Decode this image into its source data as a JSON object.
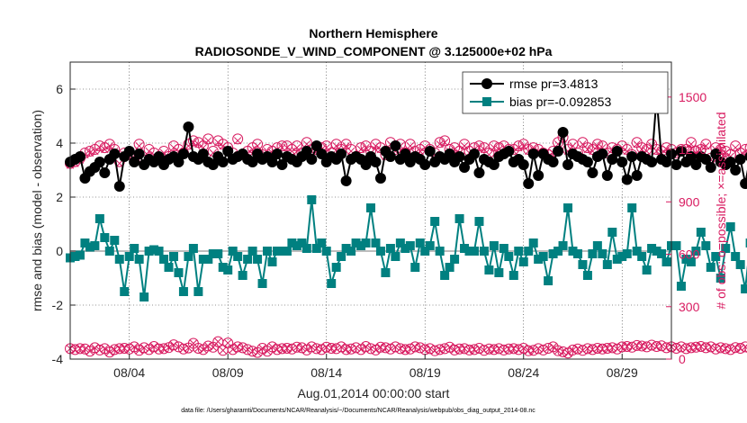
{
  "chart_data": {
    "type": "line",
    "title": "Northern Hemisphere",
    "subtitle": "RADIOSONDE_V_WIND_COMPONENT @ 3.125000e+02 hPa",
    "xlabel": "Aug.01,2014 00:00:00 start",
    "ylabel": "rmse and bias (model - observation)",
    "ylabel_right": "# of obs: o=possible; ×=assimilated",
    "footnote": "data file: /Users/gharamti/Documents/NCAR/Reanalysis/~/Documents/NCAR/Reanalysis/webpub/obs_diag_output_2014-08.nc",
    "x_tick_labels": [
      "08/04",
      "08/09",
      "08/14",
      "08/19",
      "08/24",
      "08/29"
    ],
    "x_tick_days": [
      4,
      9,
      14,
      19,
      24,
      29
    ],
    "xlim_days": [
      1,
      31.5
    ],
    "ylim": [
      -4,
      7
    ],
    "y_ticks": [
      -4,
      -2,
      0,
      2,
      4,
      6
    ],
    "ylim_right": [
      0,
      1700
    ],
    "y_ticks_right": [
      0,
      300,
      600,
      900,
      1200,
      1500
    ],
    "colors": {
      "rmse": "#000000",
      "bias": "#008080",
      "obs": "#d81b60",
      "zero_line": "#bdbdbd"
    },
    "legend": {
      "placement": "top-right",
      "rmse_label": "rmse pr=3.4813",
      "bias_label": "bias pr=-0.092853"
    },
    "time_step_days": 0.25,
    "series": [
      {
        "name": "rmse pr=3.4813",
        "key": "rmse",
        "values": [
          3.3,
          3.4,
          3.5,
          2.7,
          2.95,
          3.1,
          3.3,
          2.9,
          3.4,
          3.6,
          2.4,
          3.5,
          3.7,
          3.3,
          3.6,
          3.2,
          3.4,
          3.3,
          3.5,
          3.2,
          3.4,
          3.5,
          3.3,
          3.6,
          4.6,
          3.5,
          3.4,
          3.6,
          3.3,
          3.2,
          3.5,
          3.3,
          3.7,
          3.4,
          3.5,
          3.6,
          3.4,
          3.3,
          3.6,
          3.4,
          3.5,
          3.3,
          3.6,
          3.2,
          3.5,
          3.4,
          3.3,
          3.5,
          3.7,
          3.4,
          3.9,
          3.6,
          3.3,
          3.5,
          3.4,
          3.6,
          2.6,
          3.4,
          3.5,
          3.4,
          3.2,
          3.5,
          3.3,
          2.7,
          3.7,
          3.5,
          3.9,
          3.4,
          3.6,
          3.3,
          3.5,
          3.4,
          3.2,
          3.7,
          3.3,
          3.5,
          3.4,
          3.6,
          3.3,
          3.5,
          3.1,
          3.4,
          3.6,
          2.9,
          3.4,
          3.3,
          3.2,
          3.5,
          3.6,
          3.7,
          3.3,
          3.4,
          3.2,
          2.5,
          3.6,
          2.8,
          3.6,
          3.4,
          3.3,
          3.7,
          4.4,
          3.2,
          3.6,
          3.5,
          3.4,
          3.3,
          2.9,
          3.5,
          3.6,
          2.8,
          3.4,
          3.7,
          3.3,
          2.65,
          3.5,
          2.8,
          3.5,
          3.4,
          3.3,
          5.7,
          3.4,
          3.3,
          3.6,
          3.2,
          3.7,
          3.3,
          3.5,
          3.2,
          3.5,
          3.4,
          3.1,
          3.6,
          3.3,
          3.2,
          3.3,
          3.0,
          3.4,
          2.5,
          3.5,
          3.3,
          3.6,
          3.6,
          3.5,
          3.4,
          3.9,
          3.2,
          3.6,
          3.8,
          3.4,
          3.5,
          3.6,
          3.7,
          4.0,
          3.5,
          3.3,
          3.6,
          3.4,
          3.2,
          3.5,
          3.3,
          3.6,
          2.9,
          3.8,
          3.4,
          3.2,
          3.5,
          3.3,
          3.3,
          3.6,
          3.4,
          3.3,
          2.9,
          3.4,
          3.5,
          3.3,
          3.7,
          2.6,
          3.2,
          3.6,
          3.7,
          3.3,
          3.5,
          3.2,
          3.4,
          3.6,
          3.0,
          3.9,
          3.6,
          3.5,
          3.7,
          4.1,
          4.2
        ]
      },
      {
        "name": "bias pr=-0.092853",
        "key": "bias",
        "values": [
          -0.25,
          -0.2,
          -0.15,
          0.3,
          0.15,
          0.2,
          1.2,
          0.5,
          0.0,
          0.4,
          -0.3,
          -1.5,
          -0.2,
          0.1,
          -0.3,
          -1.7,
          0.0,
          0.05,
          0.0,
          -0.3,
          -0.6,
          -0.2,
          -0.8,
          -1.5,
          -0.2,
          0.1,
          -1.5,
          -0.3,
          -0.3,
          -0.1,
          -0.1,
          -0.6,
          -0.7,
          0.0,
          -0.2,
          -0.9,
          -0.3,
          0.0,
          -0.3,
          -1.2,
          0.0,
          -0.4,
          0.0,
          0.0,
          0.0,
          0.3,
          0.2,
          0.3,
          0.1,
          1.9,
          0.1,
          0.3,
          0.0,
          -1.2,
          -0.6,
          -0.2,
          0.1,
          0.0,
          0.3,
          0.2,
          0.3,
          1.6,
          0.3,
          0.0,
          -0.8,
          0.1,
          -0.2,
          0.3,
          0.1,
          0.2,
          -0.6,
          0.3,
          0.0,
          0.2,
          1.1,
          0.0,
          -0.9,
          -0.6,
          -0.3,
          1.2,
          0.1,
          0.0,
          0.0,
          1.1,
          0.0,
          -0.7,
          0.2,
          -0.8,
          0.1,
          -0.2,
          -0.9,
          0.0,
          -0.4,
          0.0,
          0.3,
          -0.3,
          -0.2,
          -1.1,
          -0.1,
          0.0,
          0.2,
          1.6,
          0.0,
          -0.1,
          -0.5,
          -0.9,
          -0.1,
          0.2,
          -0.1,
          -0.5,
          0.7,
          -0.3,
          -0.2,
          -0.1,
          1.6,
          0.0,
          -0.2,
          -0.7,
          0.1,
          0.0,
          -0.1,
          -0.4,
          0.2,
          0.2,
          -1.3,
          -0.3,
          -0.4,
          0.0,
          0.7,
          0.2,
          -0.6,
          -0.2,
          -1.0,
          0.1,
          0.9,
          -0.2,
          -0.5,
          -1.4,
          0.3,
          -0.5,
          -0.4,
          -0.8,
          0.0,
          -1.1,
          -0.6,
          -0.7,
          -0.3,
          0.1,
          -0.2,
          -0.2,
          -0.7,
          0.1,
          0.2,
          -0.2,
          -0.8,
          -0.2,
          -1.0,
          0.0,
          -0.3,
          0.8,
          0.0,
          -0.3,
          -0.6,
          -0.3,
          -1.0,
          -0.1,
          -0.5,
          -0.4,
          0.2,
          -0.8,
          -1.1,
          0.2,
          0.2,
          0.2,
          0.1,
          -0.5,
          0.1,
          -0.1,
          -0.3,
          -0.6,
          0.0,
          -0.2,
          -0.8,
          -0.5,
          -0.3,
          -1.4,
          -0.3,
          -1.1,
          -0.9,
          -0.4,
          -1.1,
          -0.3,
          -0.2,
          -0.1,
          0.0,
          0.1
        ]
      },
      {
        "name": "possible",
        "key": "obs_possible",
        "axis": "right",
        "values": [
          1120,
          1130,
          1150,
          1180,
          1190,
          1200,
          1220,
          1210,
          1230,
          1200,
          1130,
          1180,
          1170,
          1160,
          1230,
          1140,
          1200,
          1180,
          1150,
          1190,
          1160,
          1220,
          1200,
          1180,
          1230,
          1250,
          1240,
          1220,
          1260,
          1190,
          1250,
          1230,
          1210,
          1180,
          1260,
          1170,
          1190,
          1210,
          1230,
          1170,
          1200,
          1190,
          1210,
          1220,
          1220,
          1200,
          1220,
          1180,
          1240,
          1200,
          1200,
          1210,
          1220,
          1180,
          1230,
          1200,
          1230,
          1200,
          1160,
          1210,
          1220,
          1190,
          1230,
          1210,
          1170,
          1240,
          1200,
          1230,
          1180,
          1230,
          1190,
          1200,
          1220,
          1200,
          1180,
          1240,
          1250,
          1200,
          1210,
          1190,
          1230,
          1190,
          1210,
          1220,
          1210,
          1180,
          1220,
          1210,
          1220,
          1200,
          1200,
          1220,
          1230,
          1200,
          1210,
          1200,
          1180,
          1170,
          1190,
          1240,
          1270,
          1200,
          1230,
          1180,
          1240,
          1210,
          1200,
          1230,
          1220,
          1180,
          1210,
          1200,
          1220,
          1200,
          1170,
          1240,
          1210,
          1200,
          1230,
          1200,
          1190,
          1210,
          1200,
          1180,
          1200,
          1200,
          1240,
          1190,
          1200,
          1230,
          1150,
          1210,
          1200,
          1190,
          1170,
          1220,
          1180,
          1200,
          1210,
          1200,
          1230,
          1210,
          1230,
          1240,
          1190,
          1210,
          1240,
          1220,
          1200,
          1210,
          1220,
          1190,
          1200,
          1250,
          1230,
          1210,
          1190,
          1210,
          1230,
          1180,
          1200,
          1220,
          1170,
          1200,
          1210,
          1190,
          1180,
          1200,
          1140,
          1200,
          1180,
          1210,
          1190,
          1210,
          1170,
          1160,
          1210,
          1130,
          1200,
          1170,
          1220,
          1190,
          1210,
          1200,
          1230,
          1180,
          1200,
          1240,
          1210,
          1220
        ]
      },
      {
        "name": "assimilated",
        "key": "obs_assimilated",
        "axis": "right",
        "values": [
          1110,
          1120,
          1140,
          1170,
          1180,
          1190,
          1210,
          1200,
          1220,
          1190,
          1120,
          1170,
          1160,
          1150,
          1220,
          1130,
          1190,
          1170,
          1140,
          1180,
          1150,
          1210,
          1190,
          1170,
          1220,
          1240,
          1230,
          1210,
          1250,
          1180,
          1240,
          1220,
          1200,
          1170,
          1250,
          1160,
          1180,
          1200,
          1220,
          1160,
          1190,
          1180,
          1200,
          1210,
          1210,
          1190,
          1210,
          1170,
          1230,
          1190,
          1190,
          1200,
          1210,
          1170,
          1220,
          1190,
          1220,
          1190,
          1150,
          1200,
          1210,
          1180,
          1220,
          1200,
          1160,
          1230,
          1190,
          1220,
          1170,
          1220,
          1180,
          1190,
          1210,
          1190,
          1170,
          1230,
          1240,
          1190,
          1200,
          1180,
          1220,
          1180,
          1200,
          1210,
          1200,
          1170,
          1210,
          1200,
          1210,
          1190,
          1190,
          1210,
          1220,
          1190,
          1200,
          1190,
          1170,
          1160,
          1180,
          1230,
          1260,
          1190,
          1220,
          1170,
          1230,
          1200,
          1190,
          1220,
          1210,
          1170,
          1200,
          1190,
          1210,
          1190,
          1160,
          1230,
          1200,
          1190,
          1220,
          1190,
          1180,
          1200,
          1190,
          1170,
          1190,
          1190,
          1230,
          1180,
          1190,
          1220,
          1140,
          1200,
          1190,
          1180,
          1160,
          1210,
          1170,
          1190,
          1200,
          1190,
          1220,
          1200,
          1220,
          1230,
          1180,
          1200,
          1230,
          1210,
          1190,
          1200,
          1210,
          1180,
          1190,
          1240,
          1220,
          1200,
          1180,
          1200,
          1220,
          1170,
          1190,
          1210,
          1160,
          1190,
          1200,
          1180,
          1170,
          1190,
          1130,
          1190,
          1170,
          1200,
          1180,
          1200,
          1160,
          1150,
          1200,
          1120,
          1190,
          1160,
          1210,
          1180,
          1200,
          1190,
          1220,
          1170,
          1190,
          1230,
          1200,
          1210
        ]
      },
      {
        "name": "possible (lower band)",
        "key": "obs_lower",
        "axis": "right",
        "values": [
          60,
          55,
          60,
          58,
          45,
          65,
          52,
          60,
          40,
          55,
          60,
          62,
          58,
          70,
          50,
          65,
          55,
          72,
          58,
          60,
          66,
          82,
          70,
          58,
          64,
          90,
          62,
          55,
          75,
          68,
          100,
          50,
          92,
          55,
          70,
          65,
          55,
          45,
          38,
          62,
          45,
          70,
          55,
          60,
          62,
          58,
          68,
          65,
          52,
          70,
          60,
          55,
          68,
          62,
          60,
          70,
          55,
          58,
          65,
          55,
          72,
          60,
          52,
          68,
          65,
          58,
          70,
          60,
          55,
          58,
          70,
          65,
          55,
          60,
          48,
          55,
          60,
          68,
          52,
          58,
          60,
          52,
          55,
          62,
          50,
          58,
          55,
          60,
          52,
          58,
          60,
          55,
          62,
          48,
          50,
          60,
          52,
          62,
          70,
          48,
          42,
          35,
          52,
          58,
          50,
          60,
          55,
          62,
          58,
          62,
          65,
          58,
          70,
          72,
          68,
          78,
          75,
          70,
          80,
          72,
          76,
          65,
          70,
          62,
          70,
          60,
          65,
          68,
          72,
          65,
          70,
          58,
          65,
          60,
          55,
          66,
          62,
          70,
          60,
          58,
          65,
          70,
          60,
          68,
          62,
          72,
          58,
          65,
          62,
          60,
          58,
          68,
          55,
          62,
          60,
          66,
          70,
          56,
          68,
          60,
          72,
          62,
          55,
          70,
          65,
          58,
          66,
          60,
          62,
          55,
          68,
          60,
          72,
          60,
          52,
          50,
          48,
          58,
          55,
          60,
          45,
          50,
          58,
          62,
          58,
          48,
          55,
          60,
          50,
          44,
          58,
          48,
          62,
          70,
          20,
          5
        ]
      }
    ]
  }
}
